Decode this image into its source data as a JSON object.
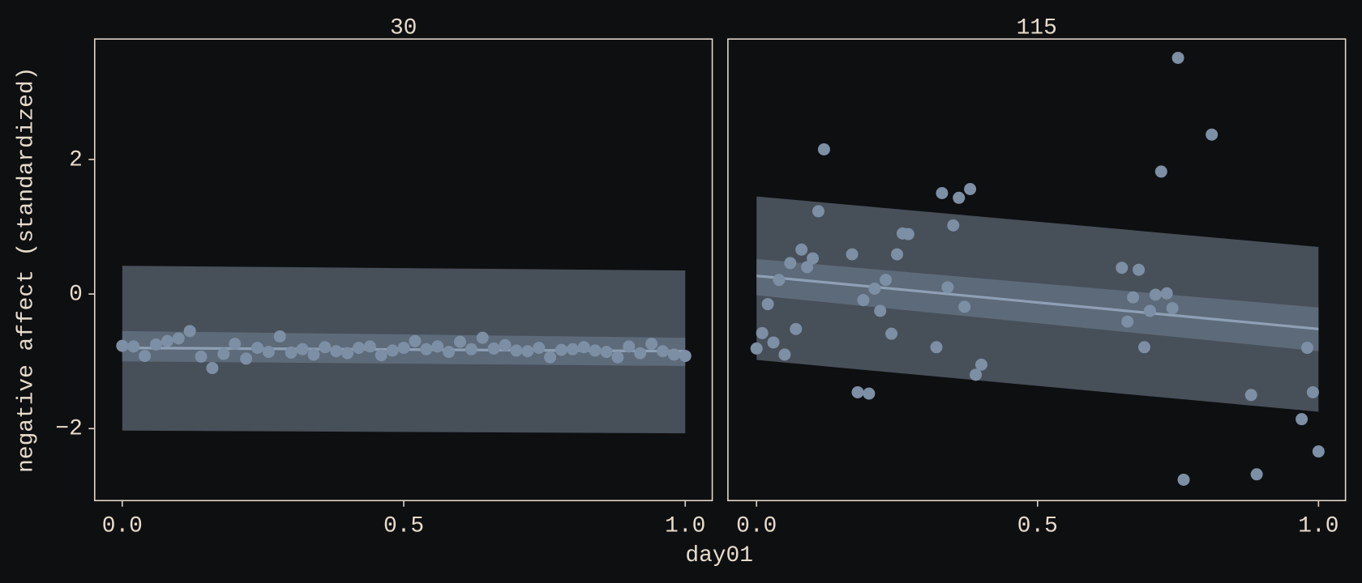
{
  "xlabel": "day01",
  "ylabel": "negative affect (standardized)",
  "chart_data": [
    {
      "type": "scatter",
      "title": "30",
      "xlim": [
        -0.049,
        1.048
      ],
      "ylim": [
        -3.07,
        3.79
      ],
      "xticks": [
        {
          "value": 0,
          "label": "0.0"
        },
        {
          "value": 0.5,
          "label": "0.5"
        },
        {
          "value": 1,
          "label": "1.0"
        }
      ],
      "yticks": [
        {
          "value": -2,
          "label": "−2"
        },
        0,
        2
      ],
      "prediction": {
        "x": [
          0,
          1
        ],
        "lower": [
          -2.03,
          -2.07
        ],
        "upper": [
          0.42,
          0.35
        ],
        "color": "#474f59"
      },
      "interval": {
        "x": [
          0,
          1
        ],
        "lower": [
          -1.0,
          -1.07
        ],
        "upper": [
          -0.55,
          -0.65
        ],
        "color": "#5d6a79"
      },
      "fit": {
        "x": [
          0,
          1
        ],
        "values": [
          -0.8,
          -0.85
        ],
        "color": "#8fa0b5"
      },
      "points": {
        "color": "#7d8fa5",
        "x": [
          0,
          0.02,
          0.04,
          0.06,
          0.08,
          0.1,
          0.12,
          0.14,
          0.16,
          0.18,
          0.2,
          0.22,
          0.24,
          0.26,
          0.28,
          0.3,
          0.32,
          0.34,
          0.36,
          0.38,
          0.4,
          0.42,
          0.44,
          0.46,
          0.48,
          0.5,
          0.52,
          0.54,
          0.56,
          0.58,
          0.6,
          0.62,
          0.64,
          0.66,
          0.68,
          0.7,
          0.72,
          0.74,
          0.76,
          0.78,
          0.8,
          0.82,
          0.84,
          0.86,
          0.88,
          0.9,
          0.92,
          0.94,
          0.96,
          0.98,
          1
        ],
        "values": [
          -0.77,
          -0.78,
          -0.92,
          -0.75,
          -0.7,
          -0.66,
          -0.55,
          -0.93,
          -1.1,
          -0.89,
          -0.74,
          -0.96,
          -0.8,
          -0.86,
          -0.63,
          -0.87,
          -0.82,
          -0.9,
          -0.79,
          -0.85,
          -0.88,
          -0.8,
          -0.78,
          -0.91,
          -0.84,
          -0.8,
          -0.7,
          -0.82,
          -0.78,
          -0.86,
          -0.71,
          -0.82,
          -0.65,
          -0.81,
          -0.76,
          -0.84,
          -0.85,
          -0.8,
          -0.94,
          -0.83,
          -0.82,
          -0.79,
          -0.84,
          -0.86,
          -0.94,
          -0.78,
          -0.88,
          -0.74,
          -0.85,
          -0.9,
          -0.92
        ]
      }
    },
    {
      "type": "scatter",
      "title": "115",
      "xlim": [
        -0.051,
        1.048
      ],
      "ylim": [
        -3.07,
        3.79
      ],
      "xticks": [
        {
          "value": 0,
          "label": "0.0"
        },
        {
          "value": 0.5,
          "label": "0.5"
        },
        {
          "value": 1,
          "label": "1.0"
        }
      ],
      "prediction": {
        "x": [
          0,
          1
        ],
        "lower": [
          -0.98,
          -1.75
        ],
        "upper": [
          1.45,
          0.7
        ],
        "color": "#474f59"
      },
      "interval": {
        "x": [
          0,
          1
        ],
        "lower": [
          -0.02,
          -0.85
        ],
        "upper": [
          0.52,
          -0.2
        ],
        "color": "#5d6a79"
      },
      "fit": {
        "x": [
          0,
          1
        ],
        "values": [
          0.27,
          -0.52
        ],
        "color": "#8fa0b5"
      },
      "points": {
        "color": "#7d8fa5",
        "x": [
          0,
          0.01,
          0.02,
          0.03,
          0.04,
          0.05,
          0.06,
          0.07,
          0.08,
          0.09,
          0.1,
          0.11,
          0.12,
          0.17,
          0.18,
          0.19,
          0.2,
          0.21,
          0.22,
          0.23,
          0.24,
          0.25,
          0.26,
          0.27,
          0.32,
          0.33,
          0.34,
          0.35,
          0.36,
          0.37,
          0.38,
          0.39,
          0.4,
          0.65,
          0.66,
          0.67,
          0.68,
          0.69,
          0.7,
          0.71,
          0.72,
          0.73,
          0.74,
          0.75,
          0.76,
          0.81,
          0.88,
          0.89,
          0.97,
          0.98,
          0.99,
          1
        ],
        "values": [
          -0.81,
          -0.58,
          -0.15,
          -0.72,
          0.21,
          -0.9,
          0.46,
          -0.52,
          0.66,
          0.4,
          0.53,
          1.23,
          2.15,
          0.59,
          -1.46,
          -0.09,
          -1.48,
          0.08,
          -0.25,
          0.21,
          -0.59,
          0.59,
          0.9,
          0.89,
          -0.79,
          1.5,
          0.1,
          1.02,
          1.43,
          -0.19,
          1.56,
          -1.2,
          -1.05,
          0.39,
          -0.41,
          -0.05,
          0.36,
          -0.79,
          -0.25,
          -0.01,
          1.82,
          0.01,
          -0.21,
          3.51,
          -2.76,
          2.37,
          -1.5,
          -2.68,
          -1.86,
          -0.8,
          -1.46,
          -2.34
        ]
      }
    }
  ]
}
